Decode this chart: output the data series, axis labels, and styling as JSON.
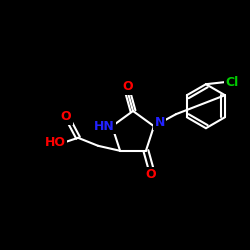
{
  "bg": "#000000",
  "bond_color": "#FFFFFF",
  "bond_width": 1.5,
  "atom_colors": {
    "O": "#FF0000",
    "N": "#2222FF",
    "Cl": "#00CC00",
    "C": "#FFFFFF",
    "H": "#FFFFFF"
  },
  "font_size": 9,
  "font_size_small": 8
}
